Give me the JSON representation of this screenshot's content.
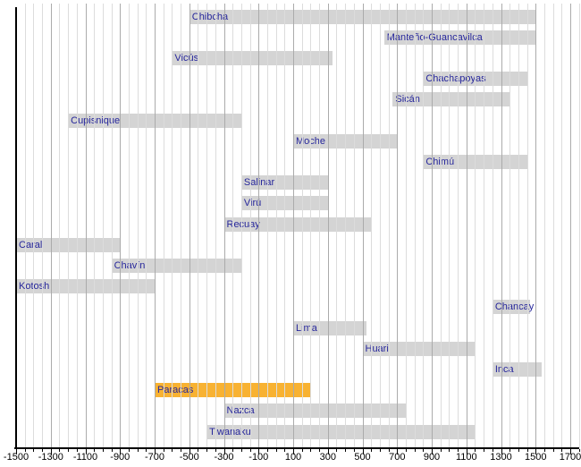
{
  "chart_data": {
    "type": "bar",
    "variant": "horizontal-timeline",
    "title": "",
    "xlabel": "",
    "ylabel": "",
    "grid": true,
    "legend_position": "none",
    "x_axis": {
      "min": -1500,
      "max": 1750,
      "major_tick_interval": 200,
      "minor_tick_interval": 50,
      "tick_labels": [
        "-1500",
        "-1300",
        "-1100",
        "-900",
        "-700",
        "-500",
        "-300",
        "-100",
        "100",
        "300",
        "500",
        "700",
        "900",
        "1100",
        "1300",
        "1500",
        "1700"
      ],
      "tick_values": [
        -1500,
        -1300,
        -1100,
        -900,
        -700,
        -500,
        -300,
        -100,
        100,
        300,
        500,
        700,
        900,
        1100,
        1300,
        1500,
        1700
      ]
    },
    "cultures": [
      {
        "name": "Chibcha",
        "start": -500,
        "end": 1500,
        "highlight": false
      },
      {
        "name": "Manteño-Guancavilca",
        "start": 625,
        "end": 1500,
        "highlight": false
      },
      {
        "name": "Vicús",
        "start": -600,
        "end": 325,
        "highlight": false
      },
      {
        "name": "Chachapoyas",
        "start": 850,
        "end": 1450,
        "highlight": false
      },
      {
        "name": "Sicán",
        "start": 675,
        "end": 1350,
        "highlight": false
      },
      {
        "name": "Cupisnique",
        "start": -1200,
        "end": -200,
        "highlight": false
      },
      {
        "name": "Moche",
        "start": 100,
        "end": 700,
        "highlight": false
      },
      {
        "name": "Chimú",
        "start": 850,
        "end": 1450,
        "highlight": false
      },
      {
        "name": "Salinar",
        "start": -200,
        "end": 300,
        "highlight": false
      },
      {
        "name": "Virú",
        "start": -200,
        "end": 300,
        "highlight": false
      },
      {
        "name": "Recuay",
        "start": -300,
        "end": 550,
        "highlight": false
      },
      {
        "name": "Caral",
        "start": -1500,
        "end": -900,
        "highlight": false
      },
      {
        "name": "Chavín",
        "start": -950,
        "end": -200,
        "highlight": false
      },
      {
        "name": "Kotosh",
        "start": -1500,
        "end": -700,
        "highlight": false
      },
      {
        "name": "Chancay",
        "start": 1250,
        "end": 1470,
        "highlight": false
      },
      {
        "name": "Lima",
        "start": 100,
        "end": 525,
        "highlight": false
      },
      {
        "name": "Huari",
        "start": 500,
        "end": 1150,
        "highlight": false
      },
      {
        "name": "Inca",
        "start": 1250,
        "end": 1533,
        "highlight": false
      },
      {
        "name": "Paracas",
        "start": -700,
        "end": 200,
        "highlight": true
      },
      {
        "name": "Nazca",
        "start": -300,
        "end": 750,
        "highlight": false
      },
      {
        "name": "Tiwanaku",
        "start": -400,
        "end": 1150,
        "highlight": false
      }
    ]
  },
  "colors": {
    "background": "#ffffff",
    "bar_default": "#d4d4d4",
    "bar_highlight": "#f8b232",
    "label_text": "#26269b",
    "axis": "#000000",
    "tick_label_text": "#000000",
    "gridline_minor": "#dcdcdc",
    "gridline_major": "#ababab"
  }
}
